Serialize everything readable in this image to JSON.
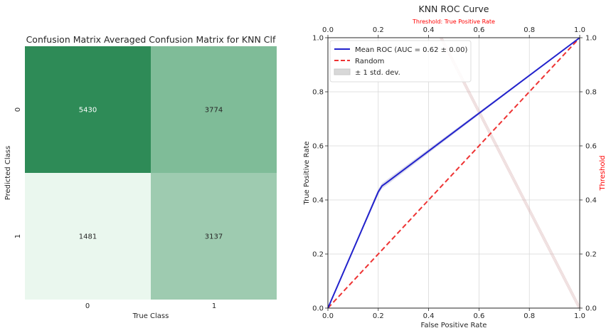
{
  "chart_data": [
    {
      "type": "heatmap",
      "title": "Confusion Matrix Averaged Confusion Matrix for KNN Clf",
      "xlabel": "True Class",
      "ylabel": "Predicted Class",
      "x_ticks": [
        "0",
        "1"
      ],
      "y_ticks": [
        "0",
        "1"
      ],
      "cells": [
        {
          "row": 0,
          "col": 0,
          "value": "5430",
          "color": "#2e8b57",
          "text_color": "#ffffff"
        },
        {
          "row": 0,
          "col": 1,
          "value": "3774",
          "color": "#7fbc98",
          "text_color": "#262626"
        },
        {
          "row": 1,
          "col": 0,
          "value": "1481",
          "color": "#eaf7ee",
          "text_color": "#262626"
        },
        {
          "row": 1,
          "col": 1,
          "value": "3137",
          "color": "#9ecbb0",
          "text_color": "#262626"
        }
      ]
    },
    {
      "type": "line",
      "title": "KNN ROC Curve",
      "top_axis_title": "Threshold: True Positive Rate",
      "xlabel": "False Positive Rate",
      "ylabel": "True Positive Rate",
      "right_ylabel": "Threshold",
      "xlim": [
        0,
        1
      ],
      "ylim": [
        0,
        1
      ],
      "x_ticks": [
        "0.0",
        "0.2",
        "0.4",
        "0.6",
        "0.8",
        "1.0"
      ],
      "y_ticks": [
        "0.0",
        "0.2",
        "0.4",
        "0.6",
        "0.8",
        "1.0"
      ],
      "grid": true,
      "legend_position": "upper-left",
      "series": [
        {
          "name": "Mean ROC (AUC = 0.62 ± 0.00)",
          "color": "#2222cc",
          "style": "solid",
          "x": [
            0.0,
            0.2,
            0.215,
            0.23,
            1.0
          ],
          "y": [
            0.0,
            0.43,
            0.452,
            0.462,
            1.0
          ],
          "band_upper": [
            0.0,
            0.44,
            0.462,
            0.472,
            1.0
          ],
          "band_lower": [
            0.0,
            0.42,
            0.442,
            0.452,
            1.0
          ]
        },
        {
          "name": "Random",
          "color": "#ee3333",
          "style": "dashed",
          "x": [
            0.0,
            1.0
          ],
          "y": [
            0.0,
            1.0
          ]
        },
        {
          "name": "Threshold",
          "color": "#cc9999",
          "style": "faint",
          "x": [
            0.45,
            1.0
          ],
          "y": [
            1.0,
            0.0
          ]
        }
      ],
      "band_legend_label": "± 1 std. dev.",
      "threshold_color": "#ff0000"
    }
  ]
}
